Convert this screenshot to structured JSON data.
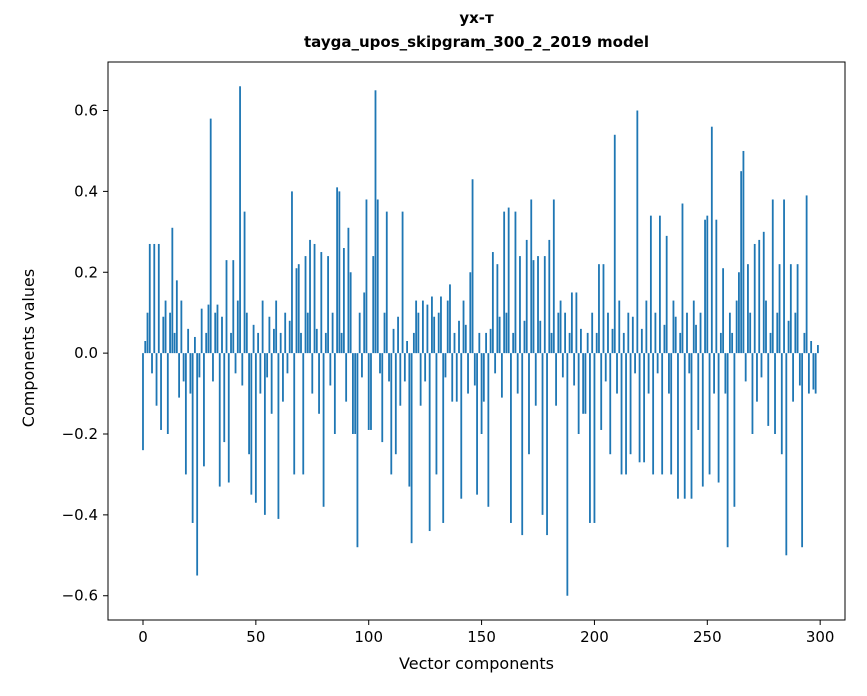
{
  "figure": {
    "title_line1": "ух-т",
    "title_line2": "tayga_upos_skipgram_300_2_2019 model",
    "xlabel": "Vector components",
    "ylabel": "Components values"
  },
  "chart_data": {
    "type": "bar",
    "title": "ух-т / tayga_upos_skipgram_300_2_2019 model",
    "xlabel": "Vector components",
    "ylabel": "Components values",
    "bar_color": "#1f77b4",
    "grid": false,
    "legend": "none",
    "xlim": [
      -15.5,
      311
    ],
    "ylim": [
      -0.66,
      0.72
    ],
    "xticks": [
      0,
      50,
      100,
      150,
      200,
      250,
      300
    ],
    "xtick_labels": [
      "0",
      "50",
      "100",
      "150",
      "200",
      "250",
      "300"
    ],
    "yticks": [
      -0.6,
      -0.4,
      -0.2,
      0.0,
      0.2,
      0.4,
      0.6
    ],
    "ytick_labels": [
      "−0.6",
      "−0.4",
      "−0.2",
      "0.0",
      "0.2",
      "0.4",
      "0.6"
    ],
    "values": [
      -0.24,
      0.03,
      0.1,
      0.27,
      -0.05,
      0.27,
      -0.13,
      0.27,
      -0.19,
      0.09,
      0.13,
      -0.2,
      0.1,
      0.31,
      0.05,
      0.18,
      -0.11,
      0.13,
      -0.07,
      -0.3,
      0.06,
      -0.1,
      -0.42,
      0.04,
      -0.55,
      -0.06,
      0.11,
      -0.28,
      0.05,
      0.12,
      0.58,
      -0.07,
      0.1,
      0.12,
      -0.33,
      0.09,
      -0.22,
      0.23,
      -0.32,
      0.05,
      0.23,
      -0.05,
      0.13,
      0.66,
      -0.08,
      0.35,
      0.1,
      -0.25,
      -0.35,
      0.07,
      -0.37,
      0.05,
      -0.1,
      0.13,
      -0.4,
      -0.06,
      0.09,
      -0.15,
      0.06,
      0.13,
      -0.41,
      0.05,
      -0.12,
      0.1,
      -0.05,
      0.08,
      0.4,
      -0.3,
      0.21,
      0.22,
      0.05,
      -0.3,
      0.24,
      0.1,
      0.28,
      -0.1,
      0.27,
      0.06,
      -0.15,
      0.25,
      -0.38,
      0.05,
      0.24,
      -0.08,
      0.1,
      -0.2,
      0.41,
      0.4,
      0.05,
      0.26,
      -0.12,
      0.31,
      0.2,
      -0.2,
      -0.2,
      -0.48,
      0.1,
      -0.06,
      0.15,
      0.38,
      -0.19,
      -0.19,
      0.24,
      0.65,
      0.38,
      -0.05,
      -0.22,
      0.1,
      0.35,
      -0.07,
      -0.3,
      0.06,
      -0.25,
      0.09,
      -0.13,
      0.35,
      -0.07,
      0.03,
      -0.33,
      -0.47,
      0.05,
      0.13,
      0.1,
      -0.13,
      0.13,
      -0.07,
      0.12,
      -0.44,
      0.14,
      0.09,
      -0.3,
      0.1,
      0.14,
      -0.42,
      -0.06,
      0.13,
      0.17,
      -0.12,
      0.05,
      -0.12,
      0.08,
      -0.36,
      0.13,
      0.07,
      -0.1,
      0.2,
      0.43,
      -0.08,
      -0.35,
      0.05,
      -0.2,
      -0.12,
      0.05,
      -0.38,
      0.06,
      0.25,
      -0.05,
      0.22,
      0.09,
      -0.11,
      0.35,
      0.1,
      0.36,
      -0.42,
      0.05,
      0.35,
      -0.1,
      0.24,
      -0.45,
      0.08,
      0.28,
      -0.25,
      0.38,
      0.23,
      -0.13,
      0.24,
      0.08,
      -0.4,
      0.24,
      -0.45,
      0.28,
      0.05,
      0.38,
      -0.13,
      0.1,
      0.13,
      -0.06,
      0.1,
      -0.6,
      0.05,
      0.15,
      -0.08,
      0.15,
      -0.2,
      0.06,
      -0.15,
      -0.15,
      0.05,
      -0.42,
      0.1,
      -0.42,
      0.05,
      0.22,
      -0.19,
      0.22,
      -0.07,
      0.1,
      -0.25,
      0.06,
      0.54,
      -0.1,
      0.13,
      -0.3,
      0.05,
      -0.3,
      0.1,
      -0.25,
      0.09,
      -0.05,
      0.6,
      -0.27,
      0.06,
      -0.27,
      0.13,
      -0.1,
      0.34,
      -0.3,
      0.1,
      -0.05,
      0.34,
      -0.3,
      0.07,
      0.29,
      -0.1,
      -0.3,
      0.13,
      0.09,
      -0.36,
      0.05,
      0.37,
      -0.36,
      0.1,
      -0.05,
      -0.36,
      0.13,
      0.07,
      -0.19,
      0.1,
      -0.33,
      0.33,
      0.34,
      -0.3,
      0.56,
      -0.1,
      0.33,
      -0.32,
      0.05,
      0.21,
      -0.1,
      -0.48,
      0.1,
      0.05,
      -0.38,
      0.13,
      0.2,
      0.45,
      0.5,
      -0.07,
      0.22,
      0.1,
      -0.2,
      0.27,
      -0.12,
      0.28,
      -0.06,
      0.3,
      0.13,
      -0.18,
      0.05,
      0.38,
      -0.2,
      0.1,
      0.22,
      -0.25,
      0.38,
      -0.5,
      0.08,
      0.22,
      -0.12,
      0.1,
      0.22,
      -0.08,
      -0.48,
      0.05,
      0.39,
      -0.1,
      0.03,
      -0.09,
      -0.1,
      0.02
    ]
  }
}
